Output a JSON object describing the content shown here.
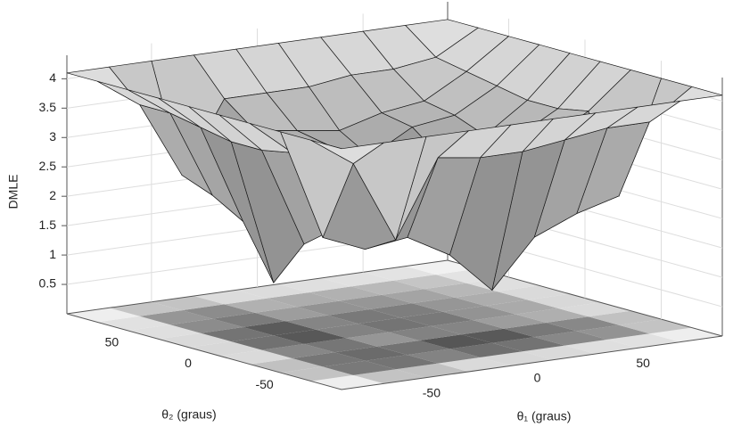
{
  "chart_data": {
    "type": "surface",
    "xlabel": "θ₁ (graus)",
    "ylabel": "θ₂ (graus)",
    "zlabel": "DMLE",
    "x": [
      -90,
      -70,
      -50,
      -30,
      -10,
      10,
      30,
      50,
      70,
      90
    ],
    "y": [
      -90,
      -70,
      -50,
      -30,
      -10,
      10,
      30,
      50,
      70,
      90
    ],
    "z": [
      [
        4.1,
        4.1,
        4.1,
        4.1,
        4.1,
        4.1,
        4.1,
        4.1,
        4.1,
        4.1
      ],
      [
        4.1,
        3.6,
        2.2,
        3.5,
        3.4,
        3.4,
        3.5,
        3.6,
        3.6,
        4.1
      ],
      [
        4.1,
        2.2,
        1.9,
        2.0,
        1.6,
        0.9,
        1.7,
        2.0,
        2.2,
        4.1
      ],
      [
        4.1,
        3.5,
        2.1,
        3.0,
        2.9,
        2.3,
        3.0,
        3.1,
        3.5,
        4.1
      ],
      [
        4.1,
        3.4,
        1.7,
        2.9,
        2.8,
        2.4,
        2.9,
        3.0,
        3.4,
        4.1
      ],
      [
        4.1,
        3.4,
        0.9,
        2.3,
        2.4,
        2.0,
        2.6,
        2.9,
        3.4,
        4.1
      ],
      [
        4.1,
        3.5,
        1.8,
        3.0,
        2.9,
        2.6,
        3.0,
        3.1,
        3.5,
        4.1
      ],
      [
        4.1,
        3.6,
        2.1,
        3.1,
        3.0,
        2.9,
        3.1,
        3.2,
        3.6,
        4.1
      ],
      [
        4.1,
        3.6,
        2.3,
        3.5,
        3.5,
        3.5,
        3.6,
        3.6,
        3.7,
        4.1
      ],
      [
        4.1,
        4.1,
        4.1,
        4.1,
        4.1,
        4.1,
        4.1,
        4.1,
        4.1,
        4.1
      ]
    ],
    "xlim": [
      -90,
      90
    ],
    "ylim": [
      -90,
      90
    ],
    "zlim": [
      0,
      4.4
    ],
    "xticks": [
      -50,
      0,
      50
    ],
    "yticks": [
      -50,
      0,
      50
    ],
    "zticks": [
      0.5,
      1,
      1.5,
      2,
      2.5,
      3,
      3.5,
      4
    ],
    "grid": true,
    "contour": true
  }
}
